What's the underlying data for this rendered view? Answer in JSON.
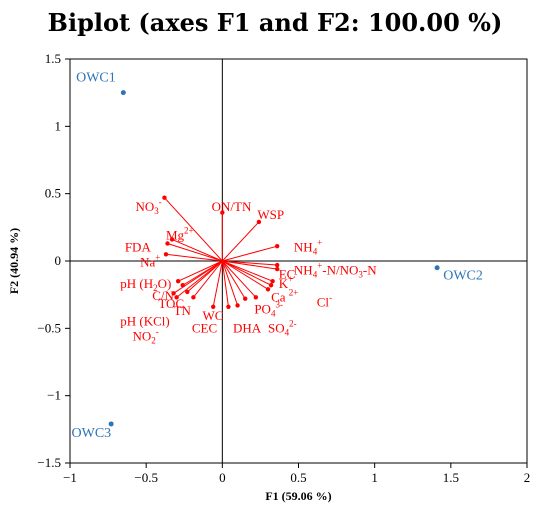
{
  "chart_data": {
    "type": "scatter",
    "subtype": "pca-biplot",
    "title": "Biplot (axes F1 and F2: 100.00 %)",
    "xlabel": "F1 (59.06 %)",
    "ylabel": "F2 (40.94 %)",
    "xlim": [
      -1,
      2
    ],
    "ylim": [
      -1.5,
      1.5
    ],
    "xticks": [
      "−1",
      "−0.5",
      "0",
      "0.5",
      "1",
      "1.5",
      "2"
    ],
    "yticks": [
      "1.5",
      "1",
      "0.5",
      "0",
      "−0.5",
      "−1",
      "−1.5"
    ],
    "x_tick_values": [
      -1,
      -0.5,
      0,
      0.5,
      1,
      1.5,
      2
    ],
    "y_tick_values": [
      1.5,
      1,
      0.5,
      0,
      -0.5,
      -1,
      -1.5
    ],
    "grid": false,
    "colors": {
      "variables": "#ff0000",
      "observations": "#2e75b6",
      "axes": "#000000"
    },
    "observations": [
      {
        "name": "OWC1",
        "x": -0.65,
        "y": 1.25
      },
      {
        "name": "OWC2",
        "x": 1.41,
        "y": -0.05
      },
      {
        "name": "OWC3",
        "x": -0.73,
        "y": -1.21
      }
    ],
    "variables": [
      {
        "name": "NO3-",
        "x": -0.38,
        "y": 0.47,
        "label_parts": [
          [
            "NO",
            ""
          ],
          [
            "3",
            "sub"
          ],
          [
            "-",
            "sup"
          ]
        ]
      },
      {
        "name": "ON/TN",
        "x": 0.0,
        "y": 0.36,
        "label_parts": [
          [
            "ON/TN",
            ""
          ]
        ]
      },
      {
        "name": "WSP",
        "x": 0.24,
        "y": 0.29,
        "label_parts": [
          [
            "WSP",
            ""
          ]
        ]
      },
      {
        "name": "Mg2+",
        "x": -0.33,
        "y": 0.16,
        "label_parts": [
          [
            "Mg",
            ""
          ],
          [
            "2+",
            "sup"
          ]
        ]
      },
      {
        "name": "FDA",
        "x": -0.36,
        "y": 0.13,
        "label_parts": [
          [
            "FDA",
            ""
          ]
        ]
      },
      {
        "name": "Na+",
        "x": -0.37,
        "y": 0.05,
        "label_parts": [
          [
            "Na",
            ""
          ],
          [
            "+",
            "sup"
          ]
        ]
      },
      {
        "name": "NH4+",
        "x": 0.36,
        "y": 0.11,
        "label_parts": [
          [
            "NH",
            ""
          ],
          [
            "4",
            "sub"
          ],
          [
            "+",
            "sup"
          ]
        ]
      },
      {
        "name": "NH4+-N/NO3-N",
        "x": 0.36,
        "y": -0.03,
        "label_parts": [
          [
            "NH",
            ""
          ],
          [
            "4",
            "sub"
          ],
          [
            "+",
            "sup"
          ],
          [
            "-N/NO",
            ""
          ],
          [
            "3",
            "sub"
          ],
          [
            "-N",
            ""
          ]
        ]
      },
      {
        "name": "EC",
        "x": 0.36,
        "y": -0.06,
        "label_parts": [
          [
            "EC",
            ""
          ]
        ]
      },
      {
        "name": "K+",
        "x": 0.33,
        "y": -0.15,
        "label_parts": [
          [
            "K",
            ""
          ],
          [
            "+",
            "sup"
          ]
        ]
      },
      {
        "name": "Ca2+",
        "x": 0.32,
        "y": -0.18,
        "label_parts": [
          [
            "Ca ",
            ""
          ],
          [
            "2+",
            "sup"
          ]
        ]
      },
      {
        "name": "Cl-",
        "x": 0.3,
        "y": -0.21,
        "label_parts": [
          [
            "Cl",
            ""
          ],
          [
            "-",
            "sup"
          ]
        ]
      },
      {
        "name": "PO43-",
        "x": 0.22,
        "y": -0.27,
        "label_parts": [
          [
            "PO",
            ""
          ],
          [
            "4",
            "sub"
          ],
          [
            "3-",
            "sup"
          ]
        ]
      },
      {
        "name": "SO42-",
        "x": 0.15,
        "y": -0.28,
        "label_parts": [
          [
            "SO",
            ""
          ],
          [
            "4",
            "sub"
          ],
          [
            "2-",
            "sup"
          ]
        ]
      },
      {
        "name": "DHA",
        "x": 0.1,
        "y": -0.33,
        "label_parts": [
          [
            "DHA",
            ""
          ]
        ]
      },
      {
        "name": "pH (H2O)",
        "x": -0.29,
        "y": -0.15,
        "label_parts": [
          [
            "pH (H",
            ""
          ],
          [
            "2",
            "sub"
          ],
          [
            "O)",
            ""
          ]
        ]
      },
      {
        "name": "C/N",
        "x": -0.26,
        "y": -0.18,
        "label_parts": [
          [
            "C/N",
            ""
          ]
        ]
      },
      {
        "name": "TOC",
        "x": -0.23,
        "y": -0.23,
        "label_parts": [
          [
            "TOC",
            ""
          ]
        ]
      },
      {
        "name": "TN",
        "x": -0.19,
        "y": -0.27,
        "label_parts": [
          [
            "TN",
            ""
          ]
        ]
      },
      {
        "name": "WC",
        "x": -0.06,
        "y": -0.34,
        "label_parts": [
          [
            "WC",
            ""
          ]
        ]
      },
      {
        "name": "CEC",
        "x": 0.04,
        "y": -0.34,
        "label_parts": [
          [
            "CEC",
            ""
          ]
        ]
      },
      {
        "name": "pH (KCl)",
        "x": -0.32,
        "y": -0.24,
        "label_parts": [
          [
            "pH (KCl)",
            ""
          ]
        ]
      },
      {
        "name": "NO2-",
        "x": -0.3,
        "y": -0.27,
        "label_parts": [
          [
            "NO",
            ""
          ],
          [
            "2",
            "sub"
          ],
          [
            "-",
            "sup"
          ]
        ]
      }
    ]
  }
}
